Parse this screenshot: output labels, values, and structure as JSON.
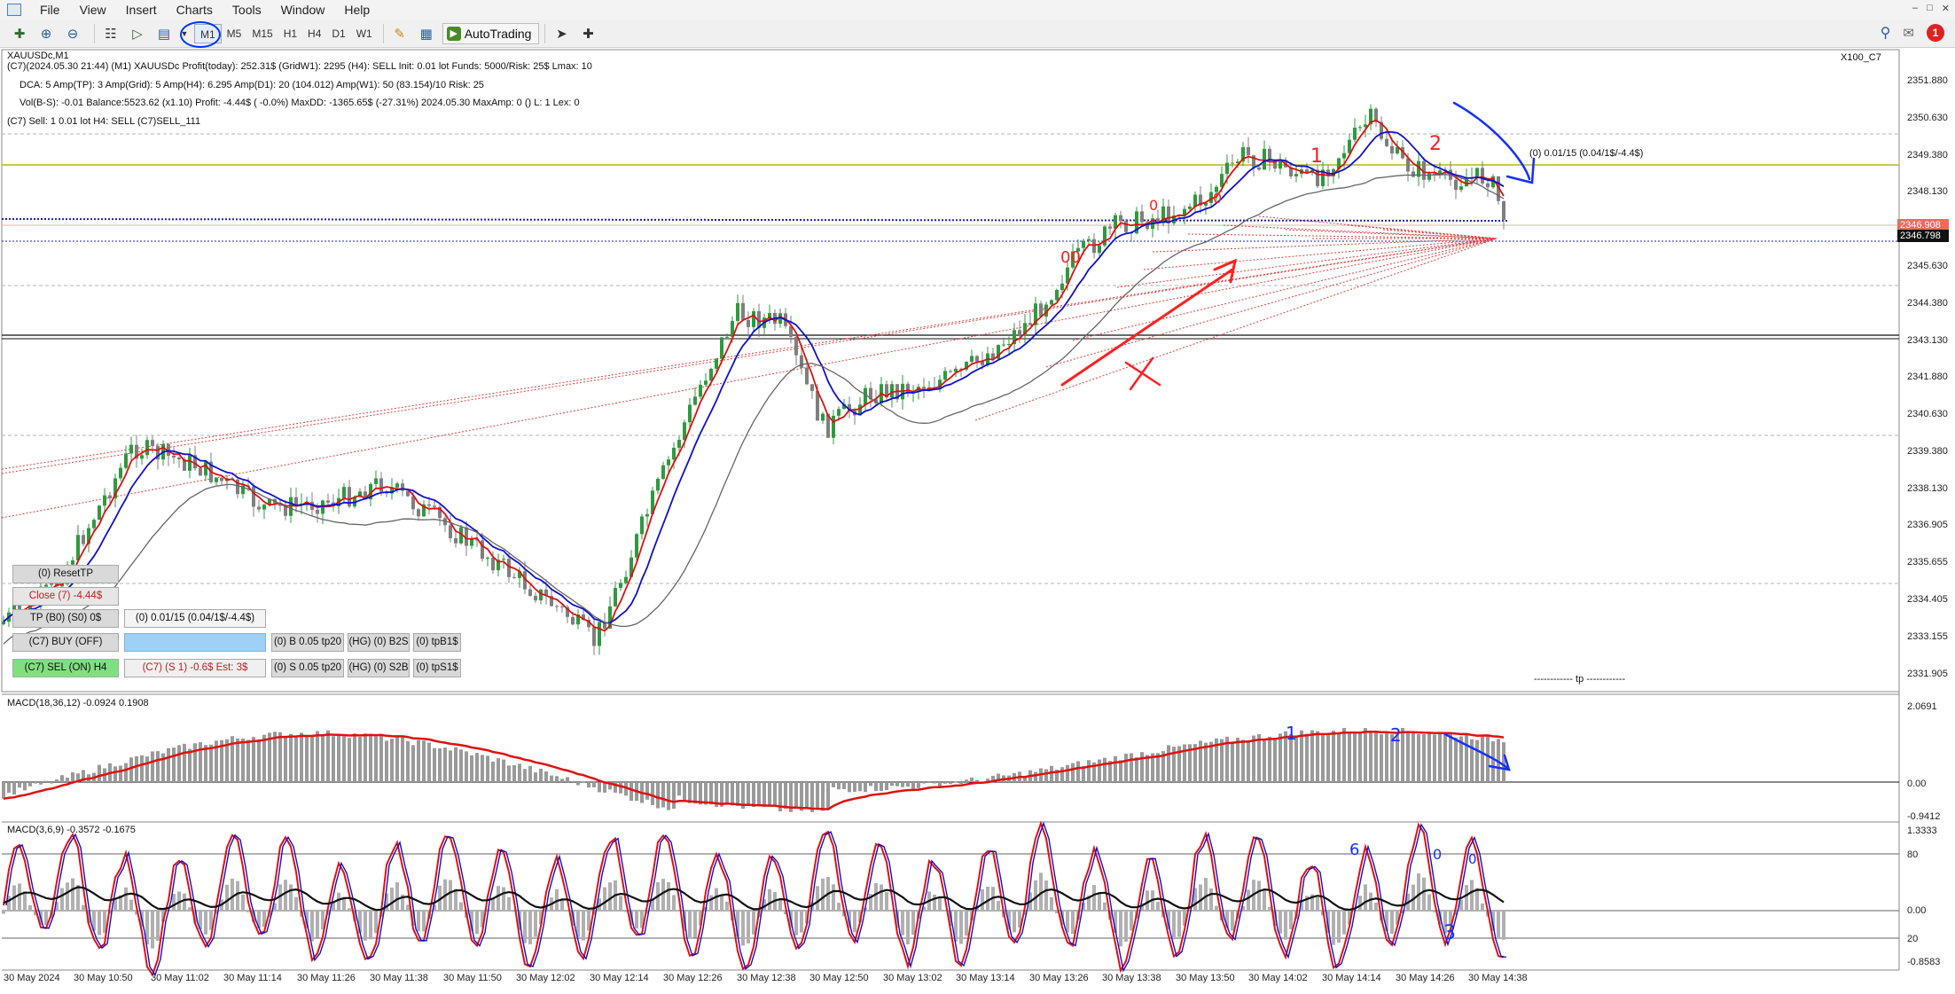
{
  "menu": {
    "items": [
      "File",
      "View",
      "Insert",
      "Charts",
      "Tools",
      "Window",
      "Help"
    ]
  },
  "toolbar": {
    "timeframes": [
      "M1",
      "M5",
      "M15",
      "H1",
      "H4",
      "D1",
      "W1"
    ],
    "active_timeframe": "M1",
    "autotrading_label": "AutoTrading",
    "alert_count": "1"
  },
  "info": {
    "symbol_line": "XAUUSDc,M1",
    "line1": "(C7)(2024.05.30 21:44)    (M1) XAUUSDc    Profit(today): 252.31$    (GridW1): 2295    (H4): SELL    Init: 0.01 lot    Funds: 5000/Risk: 25$    Lmax: 10",
    "line2": "DCA: 5    Amp(TP): 3    Amp(Grid): 5    Amp(H4): 6.295    Amp(D1): 20 (104.012)    Amp(W1): 50 (83.154)/10    Risk: 25",
    "line3": "Vol(B-S): -0.01    Balance:5523.62 (x1.10)    Profit:  -4.44$ ( -0.0%)    MaxDD: -1365.65$ (-27.31%) 2024.05.30    MaxAmp: 0 ()    L: 1    Lex: 0",
    "line4": "(C7)    Sell: 1    0.01 lot    H4: SELL    (C7)SELL_111",
    "chart_name": "X100_C7",
    "order_label": "(0)  0.01/15 (0.04/1$/-4.4$)",
    "tp_label": "------------ tp ------------"
  },
  "panel": {
    "reset_tp": "(0) ResetTP",
    "close": "Close (7)   -4.44$",
    "tp": "TP (B0) (S0) 0$",
    "order_info": "(0)  0.01/15 (0.04/1$/-4.4$)",
    "buy": "(C7) BUY (OFF)",
    "sell": "(C7) SEL (ON) H4",
    "s1": "(C7) (S 1)    -0.6$  Est: 3$",
    "b_tp": "(0) B 0.05 tp20",
    "s_tp": "(0) S 0.05 tp20",
    "hg_b2s": "(HG) (0) B2S",
    "hg_s2b": "(HG) (0) S2B",
    "tpb": "(0) tpB1$",
    "tps": "(0) tpS1$"
  },
  "price_axis": [
    "2351.880",
    "2350.630",
    "2349.380",
    "2348.130",
    "2345.630",
    "2344.380",
    "2343.130",
    "2341.880",
    "2340.630",
    "2339.380",
    "2338.130",
    "2336.905",
    "2335.655",
    "2334.405",
    "2333.155",
    "2331.905"
  ],
  "current_price_red": "2346.908",
  "current_price_bid": "2346.798",
  "macd1": {
    "label": "MACD(18,36,12) -0.0924 0.1908",
    "axis": [
      "2.0691",
      "0.00",
      "-0.9412"
    ]
  },
  "macd2": {
    "label": "MACD(3,6,9) -0.3572 -0.1675",
    "axis": [
      "1.3333",
      "80",
      "0.00",
      "20",
      "-0.8583"
    ]
  },
  "time_axis": [
    "30 May 2024",
    "30 May 10:50",
    "30 May 11:02",
    "30 May 11:14",
    "30 May 11:26",
    "30 May 11:38",
    "30 May 11:50",
    "30 May 12:02",
    "30 May 12:14",
    "30 May 12:26",
    "30 May 12:38",
    "30 May 12:50",
    "30 May 13:02",
    "30 May 13:14",
    "30 May 13:26",
    "30 May 13:38",
    "30 May 13:50",
    "30 May 14:02",
    "30 May 14:14",
    "30 May 14:26",
    "30 May 14:38"
  ],
  "annotations": {
    "red_1": "1",
    "red_2": "2",
    "red_0a": "0",
    "red_0b": "0",
    "red_00": "00",
    "red_x": "X",
    "blue_1": "1",
    "blue_2": "2",
    "blue_3": "3",
    "blue_6": "6",
    "blue_0a": "0",
    "blue_0b": "0"
  },
  "colors": {
    "bull": "#2e9a3e",
    "bear": "#7f7f7f",
    "ma_red": "#e01010",
    "ma_blue": "#1010d0",
    "ma_gray": "#666666",
    "annotation_red": "#ff2020",
    "annotation_blue": "#1530ff"
  }
}
